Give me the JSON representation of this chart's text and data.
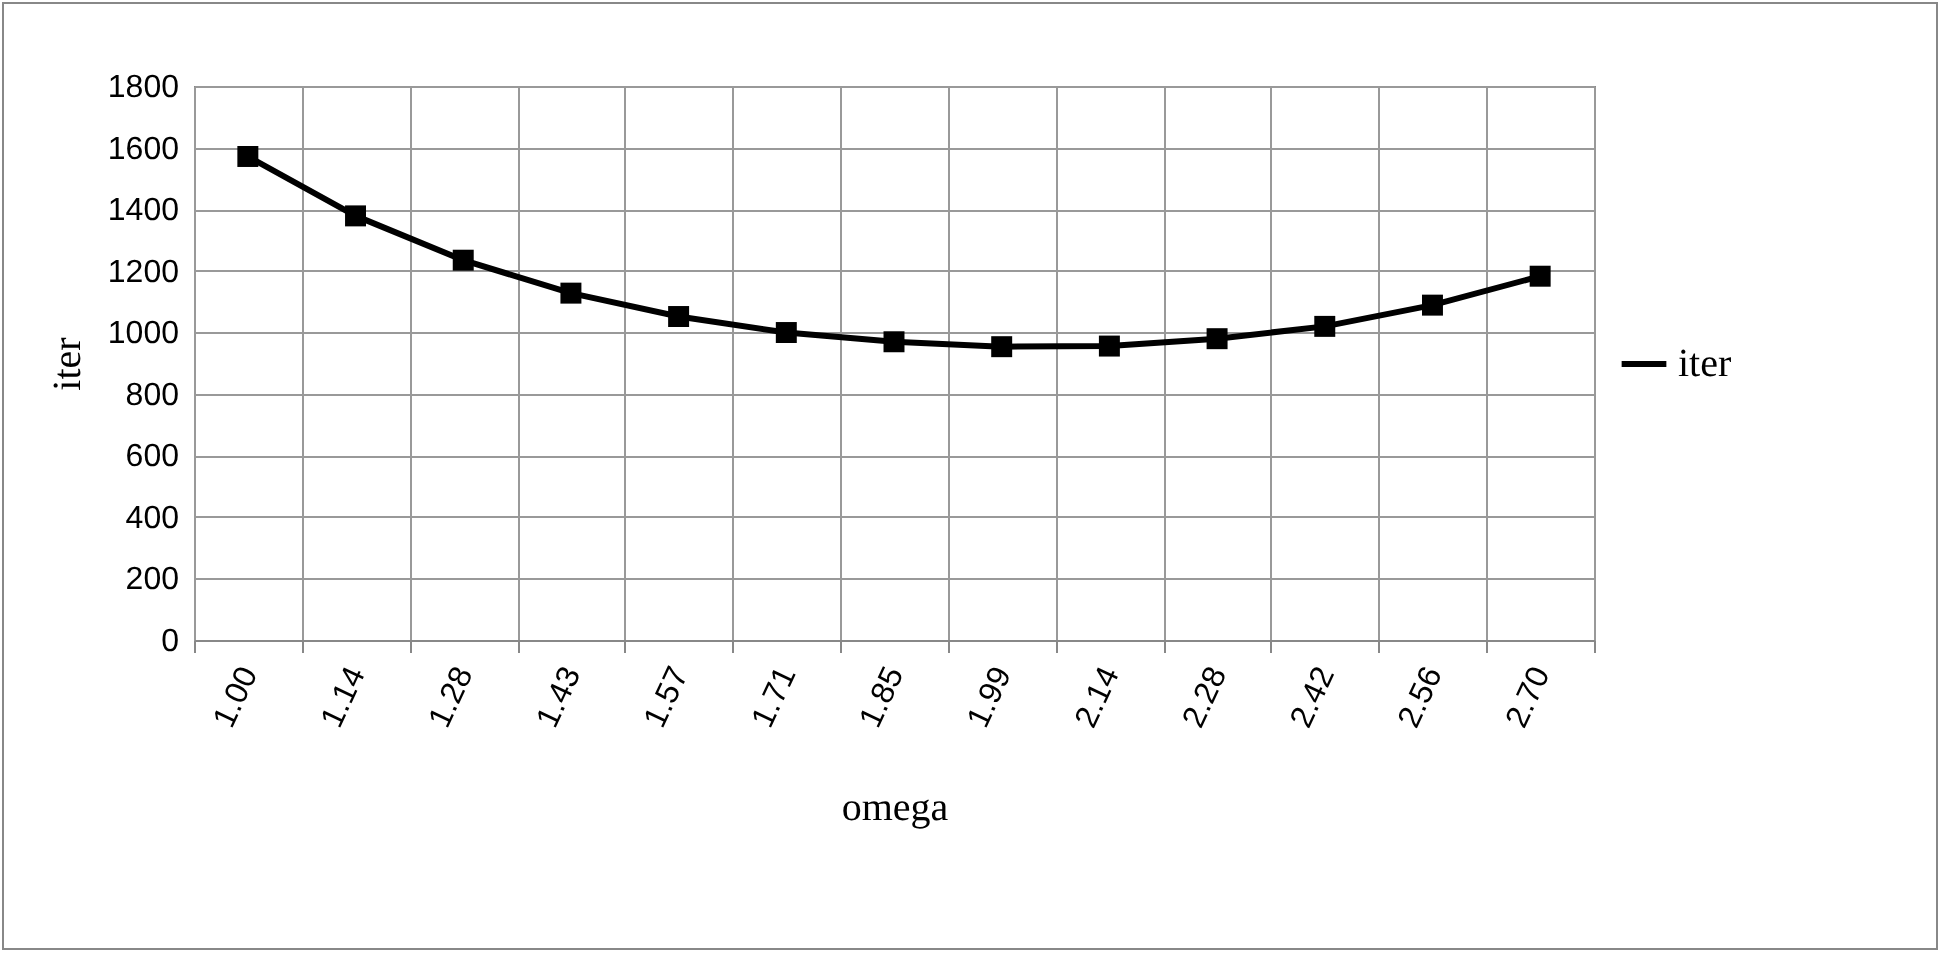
{
  "chart_data": {
    "type": "line",
    "xlabel": "omega",
    "ylabel": "iter",
    "categories": [
      "1.00",
      "1.14",
      "1.28",
      "1.43",
      "1.57",
      "1.71",
      "1.85",
      "1.99",
      "2.14",
      "2.28",
      "2.42",
      "2.56",
      "2.70"
    ],
    "series": [
      {
        "name": "iter",
        "color": "#000000",
        "values": [
          1571,
          1378,
          1234,
          1127,
          1051,
          999,
          969,
          953,
          955,
          979,
          1019,
          1088,
          1182
        ]
      }
    ],
    "ylim": [
      0,
      1800
    ],
    "yticks": [
      0,
      200,
      400,
      600,
      800,
      1000,
      1200,
      1400,
      1600,
      1800
    ],
    "grid": true,
    "legend": "right",
    "marker": "square",
    "line_style": "solid"
  }
}
